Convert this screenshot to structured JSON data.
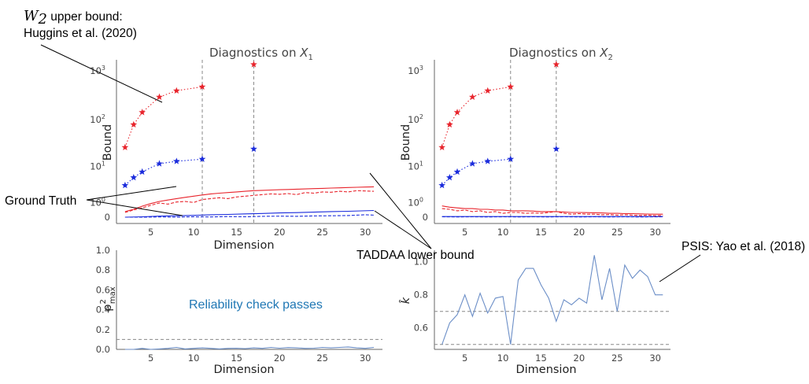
{
  "colors": {
    "red": "#e8242c",
    "blue": "#1a2bdc",
    "khat": "#6b8ec7",
    "ref": "#888888",
    "axis": "#666666",
    "annotation_text": "#1f77b4"
  },
  "annotations": {
    "w2_math": "W",
    "w2_sub": "2",
    "w2_line1_rest": " upper bound:",
    "w2_line2": "Huggins et al. (2020)",
    "ground_truth": "Ground Truth",
    "taddaa": "TADDAA lower bound",
    "psis": "PSIS: Yao et al. (2018)",
    "reliability": "Reliability check passes"
  },
  "chart_data": [
    {
      "type": "line",
      "title_main": "Diagnostics on ",
      "title_var": "X",
      "title_sub": "1",
      "xlabel": "Dimension",
      "ylabel": "Bound",
      "yscale": "symlog",
      "xlim": [
        1,
        32
      ],
      "xticks": [
        5,
        10,
        15,
        20,
        25,
        30
      ],
      "yticks": [
        {
          "value": 0,
          "label": "0"
        },
        {
          "value": 1,
          "label": "10",
          "exp": "0"
        },
        {
          "value": 10,
          "label": "10",
          "exp": "1"
        },
        {
          "value": 100,
          "label": "10",
          "exp": "2"
        },
        {
          "value": 1000,
          "label": "10",
          "exp": "3"
        }
      ],
      "vlines": [
        11,
        17
      ],
      "series": [
        {
          "style": "red-dotted-stars",
          "x": [
            2,
            3,
            4,
            6,
            8,
            11
          ],
          "y": [
            26,
            78,
            140,
            290,
            390,
            470
          ]
        },
        {
          "style": "red-star-single",
          "x": [
            17
          ],
          "y": [
            1350
          ]
        },
        {
          "style": "blue-dotted-stars",
          "x": [
            2,
            3,
            4,
            6,
            8,
            11
          ],
          "y": [
            3.5,
            5.5,
            7.5,
            11.5,
            13,
            14.5
          ]
        },
        {
          "style": "blue-star-single",
          "x": [
            17
          ],
          "y": [
            24
          ]
        },
        {
          "style": "red-solid",
          "x": [
            2,
            3,
            4,
            5,
            6,
            7,
            8,
            9,
            10,
            11,
            12,
            13,
            14,
            15,
            16,
            17,
            18,
            19,
            20,
            21,
            22,
            23,
            24,
            25,
            26,
            27,
            28,
            29,
            30,
            31
          ],
          "y": [
            0.3,
            0.45,
            0.68,
            0.9,
            1.1,
            1.25,
            1.4,
            1.55,
            1.7,
            1.85,
            2.0,
            2.1,
            2.2,
            2.3,
            2.4,
            2.5,
            2.55,
            2.6,
            2.65,
            2.7,
            2.75,
            2.8,
            2.85,
            2.9,
            2.95,
            3.0,
            3.05,
            3.1,
            3.15,
            3.2
          ]
        },
        {
          "style": "red-dashed",
          "x": [
            2,
            3,
            4,
            5,
            6,
            7,
            8,
            9,
            10,
            11,
            12,
            13,
            14,
            15,
            16,
            17,
            18,
            19,
            20,
            21,
            22,
            23,
            24,
            25,
            26,
            27,
            28,
            29,
            30,
            31
          ],
          "y": [
            0.25,
            0.4,
            0.55,
            0.75,
            0.95,
            0.85,
            1.05,
            1.1,
            1.0,
            1.3,
            1.4,
            1.5,
            1.4,
            1.6,
            1.7,
            1.8,
            1.9,
            2.0,
            1.95,
            2.05,
            1.9,
            2.2,
            2.1,
            2.3,
            2.25,
            2.4,
            2.3,
            2.5,
            2.45,
            2.4
          ]
        },
        {
          "style": "blue-solid",
          "x": [
            2,
            4,
            6,
            8,
            10,
            12,
            14,
            16,
            18,
            20,
            22,
            24,
            26,
            28,
            31
          ],
          "y": [
            0.0,
            0.02,
            0.05,
            0.07,
            0.09,
            0.12,
            0.14,
            0.17,
            0.19,
            0.22,
            0.24,
            0.27,
            0.3,
            0.32,
            0.37
          ]
        },
        {
          "style": "blue-dashed",
          "x": [
            2,
            4,
            6,
            8,
            10,
            12,
            14,
            16,
            18,
            20,
            22,
            24,
            26,
            28,
            30,
            31
          ],
          "y": [
            0.0,
            0.0,
            0.01,
            0.0,
            0.02,
            0.01,
            0.03,
            0.02,
            0.04,
            0.05,
            0.04,
            0.06,
            0.07,
            0.08,
            0.12,
            0.1
          ]
        }
      ]
    },
    {
      "type": "line",
      "title_main": "Diagnostics on ",
      "title_var": "X",
      "title_sub": "2",
      "xlabel": "",
      "ylabel": "Bound",
      "yscale": "symlog",
      "xlim": [
        1,
        32
      ],
      "xticks": [
        5,
        10,
        15,
        20,
        25,
        30
      ],
      "yticks": [
        {
          "value": 0,
          "label": "0"
        },
        {
          "value": 1,
          "label": "10",
          "exp": "0"
        },
        {
          "value": 10,
          "label": "10",
          "exp": "1"
        },
        {
          "value": 100,
          "label": "10",
          "exp": "2"
        },
        {
          "value": 1000,
          "label": "10",
          "exp": "3"
        }
      ],
      "vlines": [
        11,
        17
      ],
      "series": [
        {
          "style": "red-dotted-stars",
          "x": [
            2,
            3,
            4,
            6,
            8,
            11
          ],
          "y": [
            26,
            78,
            140,
            290,
            390,
            470
          ]
        },
        {
          "style": "red-star-single",
          "x": [
            17
          ],
          "y": [
            1350
          ]
        },
        {
          "style": "blue-dotted-stars",
          "x": [
            2,
            3,
            4,
            6,
            8,
            11
          ],
          "y": [
            3.5,
            5.5,
            7.5,
            11.5,
            13,
            14.5
          ]
        },
        {
          "style": "blue-star-single",
          "x": [
            17
          ],
          "y": [
            24
          ]
        },
        {
          "style": "red-solid",
          "x": [
            2,
            3,
            4,
            5,
            6,
            7,
            8,
            9,
            10,
            11,
            12,
            13,
            14,
            15,
            16,
            17,
            18,
            19,
            20,
            21,
            22,
            23,
            24,
            25,
            26,
            27,
            28,
            29,
            30,
            31
          ],
          "y": [
            0.7,
            0.6,
            0.55,
            0.5,
            0.5,
            0.45,
            0.45,
            0.4,
            0.4,
            0.35,
            0.35,
            0.35,
            0.33,
            0.3,
            0.3,
            0.3,
            0.28,
            0.25,
            0.25,
            0.24,
            0.23,
            0.22,
            0.2,
            0.2,
            0.18,
            0.18,
            0.17,
            0.16,
            0.15,
            0.15
          ]
        },
        {
          "style": "red-dashed",
          "x": [
            2,
            3,
            4,
            5,
            6,
            7,
            8,
            9,
            10,
            11,
            12,
            13,
            14,
            15,
            16,
            17,
            18,
            19,
            20,
            21,
            22,
            23,
            24,
            25,
            26,
            27,
            28,
            29,
            30,
            31
          ],
          "y": [
            0.5,
            0.45,
            0.35,
            0.4,
            0.3,
            0.35,
            0.25,
            0.3,
            0.2,
            0.25,
            0.25,
            0.2,
            0.22,
            0.2,
            0.25,
            0.3,
            0.2,
            0.15,
            0.18,
            0.15,
            0.15,
            0.12,
            0.13,
            0.1,
            0.12,
            0.1,
            0.08,
            0.1,
            0.07,
            0.08
          ]
        },
        {
          "style": "blue-solid",
          "x": [
            2,
            4,
            6,
            8,
            10,
            12,
            14,
            16,
            18,
            20,
            22,
            24,
            26,
            28,
            31
          ],
          "y": [
            0.03,
            0.03,
            0.03,
            0.03,
            0.03,
            0.03,
            0.03,
            0.03,
            0.03,
            0.03,
            0.03,
            0.03,
            0.03,
            0.03,
            0.03
          ]
        },
        {
          "style": "blue-dashed",
          "x": [
            2,
            4,
            6,
            8,
            10,
            12,
            14,
            16,
            18,
            20,
            22,
            24,
            26,
            28,
            31
          ],
          "y": [
            0.02,
            0.01,
            0.02,
            0.01,
            0.02,
            0.01,
            0.02,
            0.01,
            0.02,
            0.01,
            0.02,
            0.01,
            0.02,
            0.01,
            0.02
          ]
        }
      ]
    },
    {
      "type": "line",
      "xlabel": "Dimension",
      "ylabel_base": "ρ",
      "ylabel_sup": "2",
      "ylabel_sub": "max",
      "xlim": [
        1,
        32
      ],
      "ylim": [
        0,
        1.0
      ],
      "xticks": [
        5,
        10,
        15,
        20,
        25,
        30
      ],
      "yticks": [
        {
          "value": 0,
          "label": "0.0"
        },
        {
          "value": 0.2,
          "label": "0.2"
        },
        {
          "value": 0.4,
          "label": "0.4"
        },
        {
          "value": 0.6,
          "label": "0.6"
        },
        {
          "value": 0.8,
          "label": "0.8"
        },
        {
          "value": 1.0,
          "label": "1.0"
        }
      ],
      "hlines": [
        0.1
      ],
      "series": [
        {
          "style": "khat",
          "x": [
            2,
            3,
            4,
            5,
            6,
            7,
            8,
            9,
            10,
            11,
            12,
            13,
            14,
            15,
            16,
            17,
            18,
            19,
            20,
            21,
            22,
            23,
            24,
            25,
            26,
            27,
            28,
            29,
            30,
            31
          ],
          "y": [
            0.0,
            0.0,
            0.01,
            0.0,
            0.005,
            0.01,
            0.02,
            0.005,
            0.01,
            0.015,
            0.01,
            0.005,
            0.01,
            0.012,
            0.008,
            0.015,
            0.01,
            0.02,
            0.012,
            0.018,
            0.015,
            0.01,
            0.012,
            0.02,
            0.015,
            0.02,
            0.025,
            0.015,
            0.01,
            0.02
          ]
        }
      ]
    },
    {
      "type": "line",
      "xlabel": "Dimension",
      "ylabel": "k̂",
      "xlim": [
        1,
        32
      ],
      "ylim": [
        0.47,
        1.07
      ],
      "xticks": [
        5,
        10,
        15,
        20,
        25,
        30
      ],
      "yticks": [
        {
          "value": 0.6,
          "label": "0.6"
        },
        {
          "value": 0.8,
          "label": "0.8"
        },
        {
          "value": 1.0,
          "label": "1.0"
        }
      ],
      "hlines": [
        0.7,
        0.5
      ],
      "series": [
        {
          "style": "khat",
          "x": [
            2,
            3,
            4,
            5,
            6,
            7,
            8,
            9,
            10,
            11,
            12,
            13,
            14,
            15,
            16,
            17,
            18,
            19,
            20,
            21,
            22,
            23,
            24,
            25,
            26,
            27,
            28,
            29,
            30,
            31
          ],
          "y": [
            0.5,
            0.63,
            0.68,
            0.8,
            0.67,
            0.81,
            0.69,
            0.78,
            0.79,
            0.5,
            0.89,
            0.96,
            0.96,
            0.86,
            0.78,
            0.64,
            0.77,
            0.74,
            0.78,
            0.75,
            1.04,
            0.77,
            0.96,
            0.7,
            0.98,
            0.9,
            0.95,
            0.91,
            0.8,
            0.8
          ]
        }
      ]
    }
  ]
}
